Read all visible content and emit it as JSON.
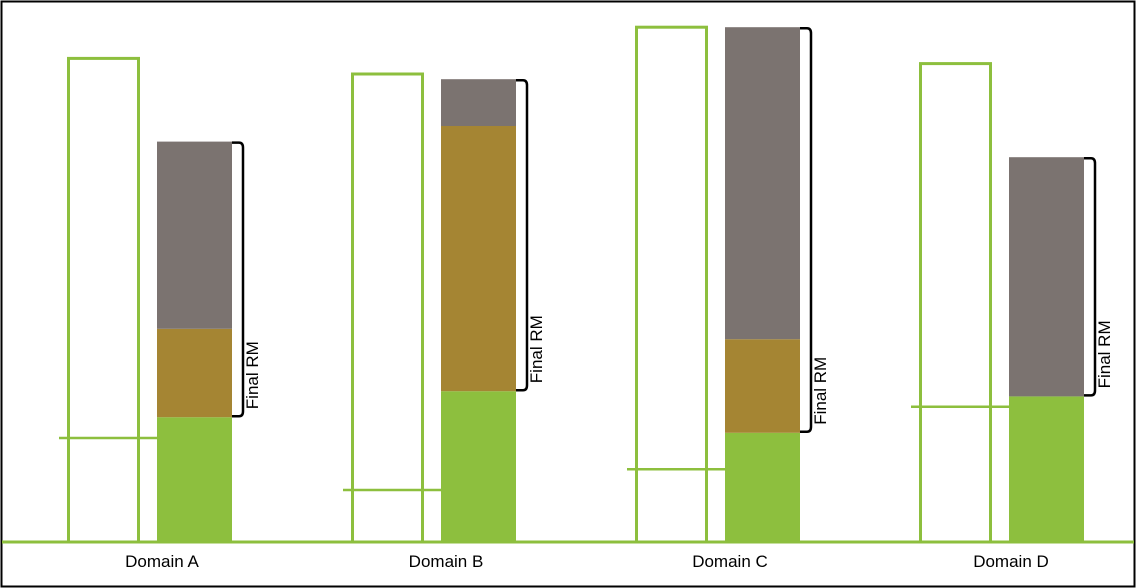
{
  "colors": {
    "frame": "#000000",
    "axis": "#8dbf3e",
    "outline": "#8dbf3e",
    "green": "#8dbf3e",
    "brown": "#a58533",
    "gray": "#7b7370",
    "brace": "#000000"
  },
  "chart_data": {
    "type": "bar",
    "categories": [
      "Domain A",
      "Domain B",
      "Domain C",
      "Domain D"
    ],
    "ylim": [
      0,
      100
    ],
    "outline_bar": [
      93,
      90,
      99,
      92
    ],
    "threshold_line": [
      20,
      10,
      14,
      26
    ],
    "series": [
      {
        "key": "green",
        "values": [
          24,
          29,
          21,
          28
        ]
      },
      {
        "key": "brown",
        "values": [
          17,
          51,
          18,
          0
        ]
      },
      {
        "key": "gray",
        "values": [
          36,
          9,
          60,
          46
        ]
      }
    ],
    "brace_label": "Final RM"
  }
}
